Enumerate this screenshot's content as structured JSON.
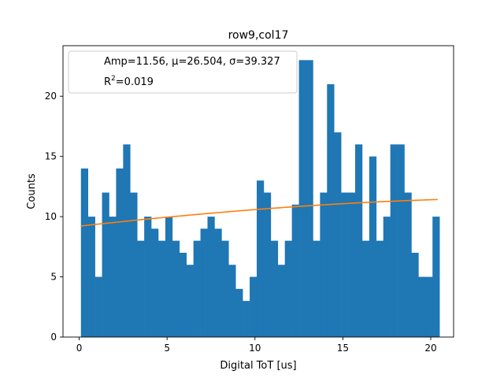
{
  "chart_data": {
    "type": "bar",
    "title": "row9,col17",
    "xlabel": "Digital ToT [us]",
    "ylabel": "Counts",
    "xlim": [
      -0.92,
      21.3
    ],
    "ylim": [
      0,
      24.2
    ],
    "xticks": [
      0,
      5,
      10,
      15,
      20
    ],
    "yticks": [
      0,
      5,
      10,
      15,
      20
    ],
    "grid": false,
    "legend_position": "top-left",
    "bin_start": 0.1,
    "bin_width": 0.4,
    "counts": [
      14,
      10,
      5,
      12,
      10,
      14,
      16,
      12,
      8,
      10,
      9,
      8,
      10,
      8,
      7,
      6,
      8,
      9,
      10,
      9,
      8,
      6,
      4,
      3,
      5,
      13,
      12,
      8,
      6,
      8,
      11,
      23,
      23,
      8,
      12,
      21,
      17,
      12,
      12,
      16,
      8,
      15,
      8,
      10,
      16,
      16,
      12,
      7,
      5,
      5,
      10
    ],
    "bar_color": "#1f77b4",
    "fit": {
      "color": "#ff7f0e",
      "amp": 11.56,
      "mu": 26.504,
      "sigma": 39.327,
      "x_range": [
        0.1,
        20.4
      ]
    },
    "legend": {
      "line1": "Amp=11.56, μ=26.504, σ=39.327",
      "r2_prefix": "R",
      "r2_sup": "2",
      "r2_value": "=0.019"
    }
  }
}
